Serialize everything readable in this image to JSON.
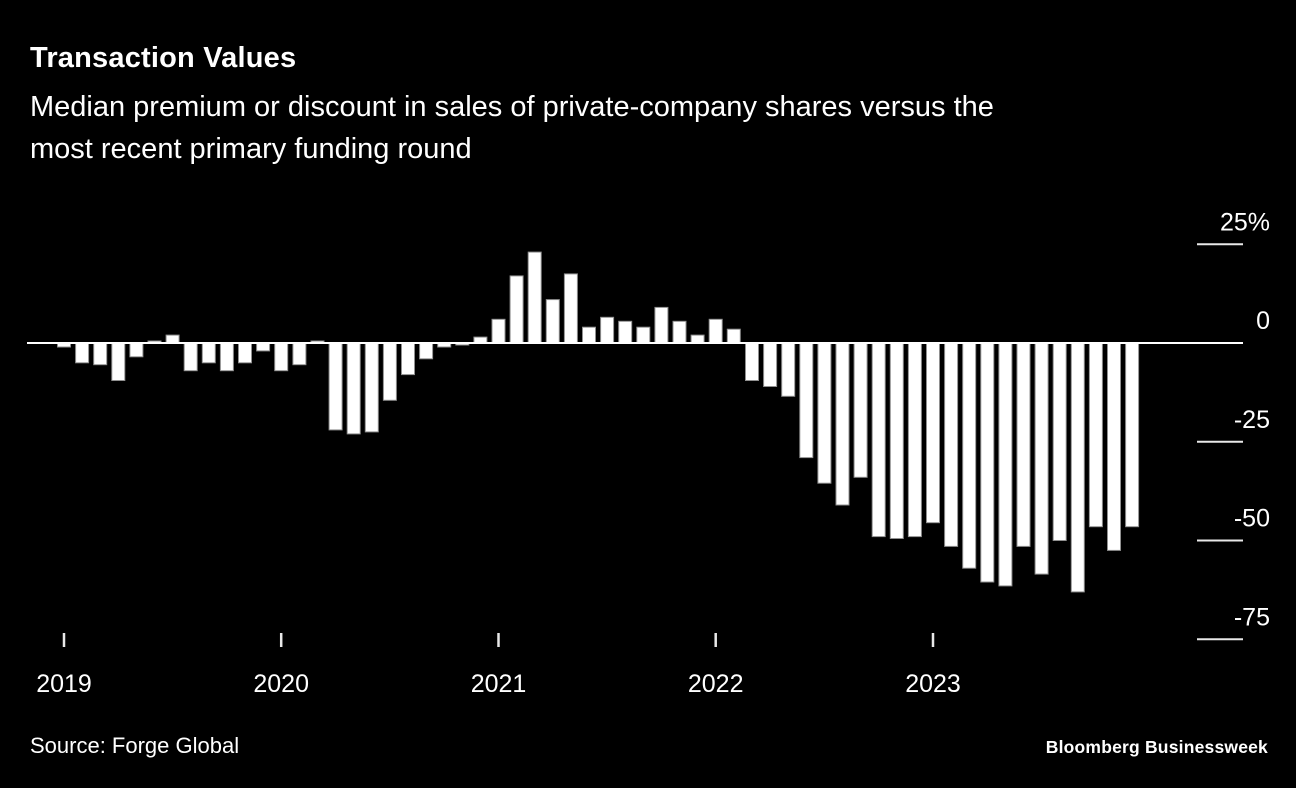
{
  "header": {
    "title": "Transaction Values",
    "subtitle_line1": "Median premium or discount in sales of private-company shares versus the",
    "subtitle_line2": "most recent primary funding round"
  },
  "footer": {
    "source": "Source: Forge Global",
    "brand": "Bloomberg Businessweek"
  },
  "colors": {
    "background": "#000000",
    "bar_fill": "#ffffff",
    "bar_stroke": "#909090",
    "axis_line": "#ffffff",
    "tick_line": "#e8e8e8",
    "text": "#ffffff"
  },
  "chart_data": {
    "type": "bar",
    "title": "Transaction Values",
    "subtitle": "Median premium or discount in sales of private-company shares versus the most recent primary funding round",
    "xlabel": "",
    "ylabel": "Median premium/discount (%)",
    "unit": "%",
    "ylim": [
      -75,
      25
    ],
    "grid": "right-side tick dashes only, zero baseline full width",
    "legend": "none",
    "y_axis": [
      {
        "label": "25%",
        "value": 25
      },
      {
        "label": "0",
        "value": 0
      },
      {
        "label": "-25",
        "value": -25
      },
      {
        "label": "-50",
        "value": -50
      },
      {
        "label": "-75",
        "value": -75
      }
    ],
    "x_years": [
      "2019",
      "2020",
      "2021",
      "2022",
      "2023"
    ],
    "months": [
      "2019-01",
      "2019-02",
      "2019-03",
      "2019-04",
      "2019-05",
      "2019-06",
      "2019-07",
      "2019-08",
      "2019-09",
      "2019-10",
      "2019-11",
      "2019-12",
      "2020-01",
      "2020-02",
      "2020-03",
      "2020-04",
      "2020-05",
      "2020-06",
      "2020-07",
      "2020-08",
      "2020-09",
      "2020-10",
      "2020-11",
      "2020-12",
      "2021-01",
      "2021-02",
      "2021-03",
      "2021-04",
      "2021-05",
      "2021-06",
      "2021-07",
      "2021-08",
      "2021-09",
      "2021-10",
      "2021-11",
      "2021-12",
      "2022-01",
      "2022-02",
      "2022-03",
      "2022-04",
      "2022-05",
      "2022-06",
      "2022-07",
      "2022-08",
      "2022-09",
      "2022-10",
      "2022-11",
      "2022-12",
      "2023-01",
      "2023-02",
      "2023-03",
      "2023-04",
      "2023-05",
      "2023-06",
      "2023-07",
      "2023-08",
      "2023-09",
      "2023-10",
      "2023-11",
      "2023-12"
    ],
    "values": [
      -1,
      -5,
      -5.5,
      -9.5,
      -3.5,
      0.5,
      2,
      -7,
      -5,
      -7,
      -5,
      -2,
      -7,
      -5.5,
      0.5,
      -22,
      -23,
      -22.5,
      -14.5,
      -8,
      -4,
      -1,
      -0.5,
      1.5,
      6,
      17,
      23,
      11,
      17.5,
      4,
      6.5,
      5.5,
      4,
      9,
      5.5,
      2,
      6,
      3.5,
      -9.5,
      -11,
      -13.5,
      -29,
      -35.5,
      -41,
      -34,
      -49,
      -49.5,
      -49,
      -45.5,
      -51.5,
      -57,
      -60.5,
      -61.5,
      -51.5,
      -58.5,
      -50,
      -63,
      -46.5,
      -52.5,
      -46.5
    ],
    "source": "Forge Global"
  }
}
